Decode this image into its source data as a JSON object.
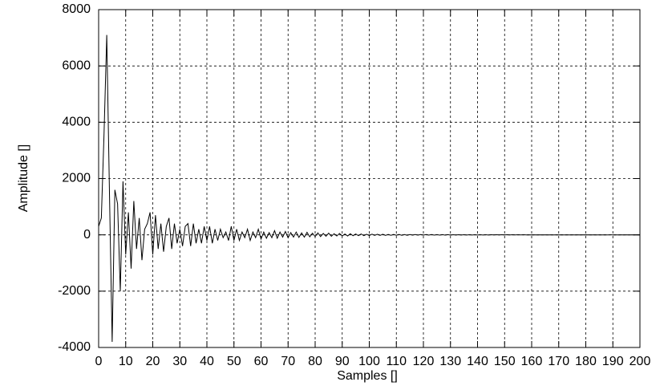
{
  "chart_data": {
    "type": "line",
    "x_label": "Samples []",
    "y_label": "Amplitude []",
    "xlim": [
      0,
      200
    ],
    "xticks": [
      0,
      10,
      20,
      30,
      40,
      50,
      60,
      70,
      80,
      90,
      100,
      110,
      120,
      130,
      140,
      150,
      160,
      170,
      180,
      190,
      200
    ],
    "ylim": [
      -4000,
      8000
    ],
    "yticks": [
      -4000,
      -2000,
      0,
      2000,
      4000,
      6000,
      8000
    ],
    "grid": true,
    "x": [
      0,
      1,
      2,
      3,
      4,
      5,
      6,
      7,
      8,
      9,
      10,
      11,
      12,
      13,
      14,
      15,
      16,
      17,
      18,
      19,
      20,
      21,
      22,
      23,
      24,
      25,
      26,
      27,
      28,
      29,
      30,
      31,
      32,
      33,
      34,
      35,
      36,
      37,
      38,
      39,
      40,
      41,
      42,
      43,
      44,
      45,
      46,
      47,
      48,
      49,
      50,
      51,
      52,
      53,
      54,
      55,
      56,
      57,
      58,
      59,
      60,
      61,
      62,
      63,
      64,
      65,
      66,
      67,
      68,
      69,
      70,
      71,
      72,
      73,
      74,
      75,
      76,
      77,
      78,
      79,
      80,
      81,
      82,
      83,
      84,
      85,
      86,
      87,
      88,
      89,
      90,
      91,
      92,
      93,
      94,
      95,
      96,
      97,
      98,
      99,
      100,
      101,
      102,
      103,
      104,
      105,
      106,
      107,
      108,
      109,
      110,
      111,
      112,
      113,
      114,
      115,
      116,
      117,
      118,
      119,
      120,
      121,
      122,
      123,
      124,
      125,
      126,
      127,
      128,
      129,
      130,
      131,
      132,
      133,
      134,
      135,
      136,
      137,
      138,
      139,
      140,
      141,
      142,
      143,
      144,
      145,
      146,
      147,
      148,
      149,
      150,
      151,
      152,
      153,
      154,
      155,
      156,
      157,
      158,
      159,
      160,
      161,
      162,
      163,
      164,
      165,
      166,
      167,
      168,
      169,
      170,
      171,
      172,
      173,
      174,
      175,
      176,
      177,
      178,
      179,
      180,
      181,
      182,
      183,
      184,
      185,
      186,
      187,
      188,
      189,
      190,
      191,
      192,
      193,
      194,
      195,
      196,
      197,
      198,
      199,
      200
    ],
    "series": [
      {
        "color": "#000000",
        "values": [
          300,
          600,
          3600,
          7100,
          1500,
          -3800,
          1600,
          1100,
          -2000,
          1900,
          -700,
          800,
          -1200,
          1200,
          -500,
          600,
          -900,
          200,
          400,
          800,
          -700,
          700,
          -500,
          400,
          -600,
          300,
          600,
          -500,
          400,
          -300,
          200,
          -400,
          300,
          400,
          -400,
          400,
          -300,
          200,
          -300,
          300,
          -200,
          300,
          -300,
          200,
          -200,
          200,
          -100,
          100,
          -200,
          300,
          -200,
          200,
          -200,
          100,
          -100,
          200,
          -200,
          100,
          -100,
          200,
          -150,
          100,
          -120,
          80,
          -100,
          150,
          -120,
          100,
          -80,
          120,
          -100,
          80,
          -80,
          100,
          -90,
          70,
          -80,
          90,
          -70,
          60,
          -60,
          70,
          -60,
          50,
          -50,
          60,
          -50,
          40,
          -40,
          50,
          -40,
          30,
          -40,
          40,
          -30,
          30,
          -30,
          30,
          -30,
          20,
          -25,
          25,
          -20,
          20,
          -20,
          20,
          -20,
          15,
          -15,
          15,
          -15,
          15,
          -15,
          10,
          -15,
          10,
          -10,
          10,
          -10,
          10,
          -10,
          10,
          -10,
          10,
          -10,
          8,
          -8,
          8,
          -8,
          8,
          -8,
          6,
          -6,
          6,
          -6,
          6,
          -6,
          5,
          -5,
          5,
          -5,
          5,
          -5,
          5,
          -5,
          4,
          -4,
          4,
          -4,
          4,
          -4,
          3,
          -3,
          3,
          -3,
          3,
          -3,
          3,
          -3,
          2,
          -2,
          2,
          -2,
          2,
          -2,
          2,
          -2,
          2,
          -2,
          2,
          -2,
          1,
          -1,
          1,
          -1,
          1,
          -1,
          1,
          -1,
          1,
          -1,
          1,
          -1,
          1,
          -1,
          1,
          -1,
          1,
          -1,
          1,
          -1,
          1,
          -1,
          1,
          -1,
          1,
          -1,
          1,
          -1,
          1,
          -1
        ]
      }
    ]
  }
}
